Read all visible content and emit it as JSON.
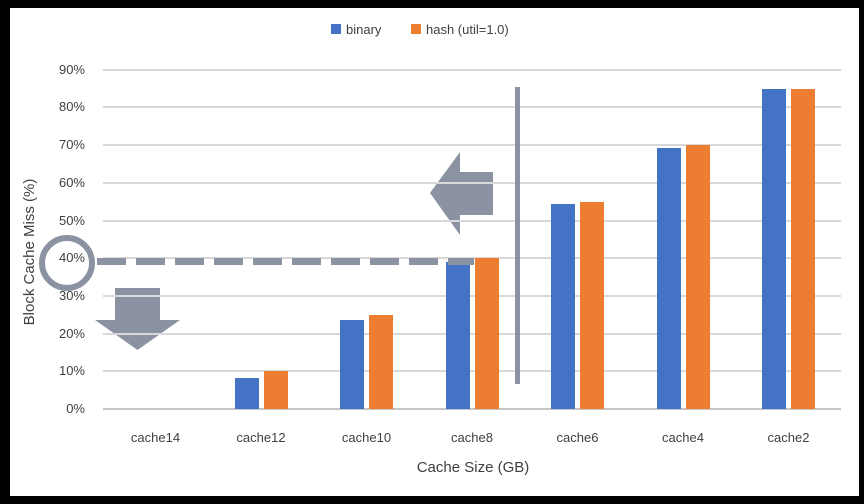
{
  "chart_data": {
    "type": "bar",
    "title": "",
    "categories": [
      "cache14",
      "cache12",
      "cache10",
      "cache8",
      "cache6",
      "cache4",
      "cache2"
    ],
    "series": [
      {
        "name": "binary",
        "color": "#4472C4",
        "values": [
          0,
          8.3,
          23.7,
          39,
          54.4,
          69.3,
          85
        ]
      },
      {
        "name": "hash (util=1.0)",
        "color": "#ED7D31",
        "values": [
          0,
          10,
          25,
          40,
          55,
          70,
          85
        ]
      }
    ],
    "xlabel": "Cache Size (GB)",
    "ylabel": "Block Cache Miss (%)",
    "ylim": [
      0,
      90
    ],
    "ytick_labels": [
      "0%",
      "10%",
      "20%",
      "30%",
      "40%",
      "50%",
      "60%",
      "70%",
      "80%",
      "90%"
    ],
    "grid": true,
    "legend_position": "top-center",
    "annotations": {
      "color": "#8B93A3",
      "dashed_horizontal_line_at_pct": 40,
      "circled_ytick": "40%",
      "vertical_separator_between": [
        "cache8",
        "cache6"
      ],
      "arrows": [
        "large-left-arrow",
        "large-down-arrow"
      ]
    },
    "colors": {
      "gridline": "#D9D9D9",
      "axis_line": "#C6C6C6",
      "text": "#404040",
      "plot_background": "#FFFFFF",
      "frame": "#000000"
    }
  }
}
